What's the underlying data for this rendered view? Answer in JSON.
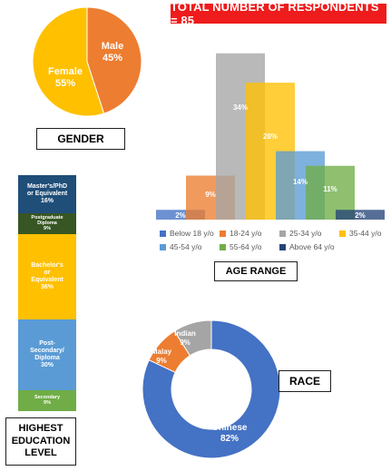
{
  "banner": "TOTAL NUMBER OF RESPONDENTS = 85",
  "colors": {
    "banner": "#ee1c1c",
    "male": "#ed7d31",
    "female": "#ffc000",
    "below18": "#4472c4",
    "a18_24": "#ed7d31",
    "a25_34": "#a5a5a5",
    "a35_44": "#ffc000",
    "a45_54": "#5b9bd5",
    "a55_64": "#70ad47",
    "above64": "#264478",
    "chinese": "#4472c4",
    "malay": "#ed7d31",
    "indian": "#a5a5a5"
  },
  "chart_data": [
    {
      "type": "pie",
      "title": "GENDER",
      "slices": [
        {
          "label": "Male",
          "value": 45,
          "display": "45%",
          "color": "#ed7d31"
        },
        {
          "label": "Female",
          "value": 55,
          "display": "55%",
          "color": "#ffc000"
        }
      ]
    },
    {
      "type": "bar",
      "title": "AGE RANGE",
      "categories": [
        "Below 18 y/o",
        "18-24 y/o",
        "25-34 y/o",
        "35-44 y/o",
        "45-54 y/o",
        "55-64 y/o",
        "Above 64 y/o"
      ],
      "values": [
        2,
        9,
        34,
        28,
        14,
        11,
        2
      ],
      "labels": [
        "2%",
        "9%",
        "34%",
        "28%",
        "14%",
        "11%",
        "2%"
      ],
      "colors": [
        "#4472c4",
        "#ed7d31",
        "#a5a5a5",
        "#ffc000",
        "#5b9bd5",
        "#70ad47",
        "#264478"
      ],
      "ylim": [
        0,
        36
      ],
      "legend": "bottom"
    },
    {
      "type": "bar",
      "title": "HIGHEST EDUCATION LEVEL",
      "stacked": true,
      "segments": [
        {
          "lines": [
            "Master's/PhD",
            "or Equivalent",
            "16%"
          ],
          "value": 16,
          "color": "#1f4e79"
        },
        {
          "lines": [
            "Postgraduate",
            "Diploma",
            "9%"
          ],
          "value": 9,
          "color": "#375623"
        },
        {
          "lines": [
            "Bachelor's",
            "or",
            "Equivalent",
            "36%"
          ],
          "value": 36,
          "color": "#ffc000"
        },
        {
          "lines": [
            "Post-",
            "Secondary/",
            "Diploma",
            "30%"
          ],
          "value": 30,
          "color": "#5b9bd5"
        },
        {
          "lines": [
            "Secondary",
            "9%"
          ],
          "value": 9,
          "color": "#70ad47"
        }
      ]
    },
    {
      "type": "pie",
      "donut": true,
      "title": "RACE",
      "slices": [
        {
          "label": "Chinese",
          "value": 82,
          "display": "82%",
          "color": "#4472c4"
        },
        {
          "label": "Malay",
          "value": 9,
          "display": "9%",
          "color": "#ed7d31"
        },
        {
          "label": "Indian",
          "value": 9,
          "display": "9%",
          "color": "#a5a5a5"
        }
      ]
    }
  ],
  "labels": {
    "gender": "GENDER",
    "age": "AGE RANGE",
    "education": [
      "HIGHEST",
      "EDUCATION",
      "LEVEL"
    ],
    "race": "RACE"
  }
}
